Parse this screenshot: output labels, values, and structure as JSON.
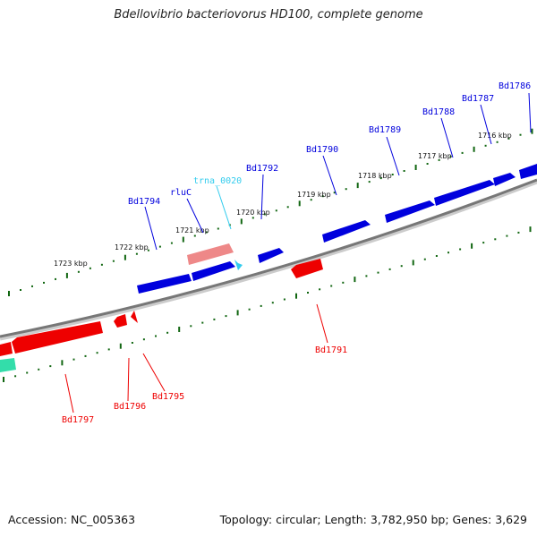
{
  "title": "Bdellovibrio bacteriovorus HD100, complete genome",
  "footer": {
    "accession": "Accession: NC_005363",
    "summary": "Topology: circular; Length: 3,782,950 bp; Genes: 3,629"
  },
  "colors": {
    "forward": "#0000dd",
    "reverse": "#ee0000",
    "trna": "#33ccee",
    "pseudo": "#ee8888",
    "other": "#33ddaa",
    "backbone": "#777777",
    "ticks": "#116611"
  },
  "scale": {
    "labels": [
      "1716 kbp",
      "1717 kbp",
      "1718 kbp",
      "1719 kbp",
      "1720 kbp",
      "1721 kbp",
      "1722 kbp",
      "1723 kbp"
    ]
  },
  "genes": {
    "forward": [
      "Bd1786",
      "Bd1787",
      "Bd1788",
      "Bd1789",
      "Bd1790",
      "Bd1792",
      "rluC",
      "Bd1794"
    ],
    "trna": [
      "trna_0020"
    ],
    "reverse": [
      "Bd1791",
      "Bd1795",
      "Bd1796",
      "Bd1797"
    ]
  }
}
